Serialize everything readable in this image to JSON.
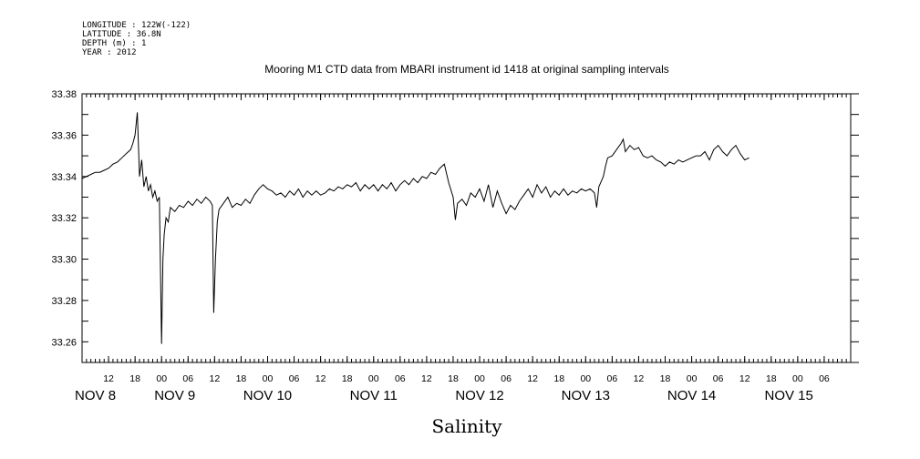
{
  "header": {
    "longitude": "LONGITUDE : 122W(-122)",
    "latitude": "LATITUDE : 36.8N",
    "depth": "DEPTH (m) : 1",
    "year": "YEAR : 2012"
  },
  "chart_data": {
    "type": "line",
    "title": "Mooring M1 CTD data from MBARI instrument id 1418 at original sampling intervals",
    "xlabel": "Salinity",
    "ylabel": "",
    "x_unit": "hours since NOV 8 00:00 (2012)",
    "xlim": [
      6,
      180
    ],
    "ylim": [
      33.25,
      33.38
    ],
    "y_ticks": [
      "33.26",
      "33.28",
      "33.30",
      "33.32",
      "33.34",
      "33.36",
      "33.38"
    ],
    "x_hour_ticks": [
      {
        "t": 12,
        "label": "12"
      },
      {
        "t": 18,
        "label": "18"
      },
      {
        "t": 24,
        "label": "00"
      },
      {
        "t": 30,
        "label": "06"
      },
      {
        "t": 36,
        "label": "12"
      },
      {
        "t": 42,
        "label": "18"
      },
      {
        "t": 48,
        "label": "00"
      },
      {
        "t": 54,
        "label": "06"
      },
      {
        "t": 60,
        "label": "12"
      },
      {
        "t": 66,
        "label": "18"
      },
      {
        "t": 72,
        "label": "00"
      },
      {
        "t": 78,
        "label": "06"
      },
      {
        "t": 84,
        "label": "12"
      },
      {
        "t": 90,
        "label": "18"
      },
      {
        "t": 96,
        "label": "00"
      },
      {
        "t": 102,
        "label": "06"
      },
      {
        "t": 108,
        "label": "12"
      },
      {
        "t": 114,
        "label": "18"
      },
      {
        "t": 120,
        "label": "00"
      },
      {
        "t": 126,
        "label": "06"
      },
      {
        "t": 132,
        "label": "12"
      },
      {
        "t": 138,
        "label": "18"
      },
      {
        "t": 144,
        "label": "00"
      },
      {
        "t": 150,
        "label": "06"
      },
      {
        "t": 156,
        "label": "12"
      },
      {
        "t": 162,
        "label": "18"
      },
      {
        "t": 168,
        "label": "00"
      },
      {
        "t": 174,
        "label": "06"
      }
    ],
    "x_day_labels": [
      {
        "t": 9,
        "label": "NOV  8"
      },
      {
        "t": 27,
        "label": "NOV  9"
      },
      {
        "t": 48,
        "label": "NOV 10"
      },
      {
        "t": 72,
        "label": "NOV 11"
      },
      {
        "t": 96,
        "label": "NOV 12"
      },
      {
        "t": 120,
        "label": "NOV 13"
      },
      {
        "t": 144,
        "label": "NOV 14"
      },
      {
        "t": 166,
        "label": "NOV 15"
      }
    ],
    "series": [
      {
        "values": [
          [
            6.0,
            33.339
          ],
          [
            7.0,
            33.34
          ],
          [
            8.0,
            33.341
          ],
          [
            9.0,
            33.342
          ],
          [
            10.0,
            33.342
          ],
          [
            11.0,
            33.343
          ],
          [
            12.0,
            33.344
          ],
          [
            13.0,
            33.346
          ],
          [
            14.0,
            33.347
          ],
          [
            15.0,
            33.349
          ],
          [
            16.0,
            33.351
          ],
          [
            17.0,
            33.353
          ],
          [
            17.5,
            33.356
          ],
          [
            18.0,
            33.36
          ],
          [
            18.5,
            33.371
          ],
          [
            19.0,
            33.34
          ],
          [
            19.5,
            33.348
          ],
          [
            20.0,
            33.335
          ],
          [
            20.5,
            33.34
          ],
          [
            21.0,
            33.333
          ],
          [
            21.5,
            33.336
          ],
          [
            22.0,
            33.33
          ],
          [
            22.5,
            33.333
          ],
          [
            23.0,
            33.328
          ],
          [
            23.5,
            33.33
          ],
          [
            24.0,
            33.259
          ],
          [
            24.3,
            33.3
          ],
          [
            24.6,
            33.312
          ],
          [
            25.0,
            33.32
          ],
          [
            25.5,
            33.318
          ],
          [
            26.0,
            33.325
          ],
          [
            27.0,
            33.323
          ],
          [
            28.0,
            33.326
          ],
          [
            29.0,
            33.325
          ],
          [
            30.0,
            33.328
          ],
          [
            31.0,
            33.326
          ],
          [
            32.0,
            33.329
          ],
          [
            33.0,
            33.327
          ],
          [
            34.0,
            33.33
          ],
          [
            35.0,
            33.328
          ],
          [
            35.5,
            33.326
          ],
          [
            35.8,
            33.274
          ],
          [
            36.2,
            33.3
          ],
          [
            36.6,
            33.318
          ],
          [
            37.0,
            33.324
          ],
          [
            38.0,
            33.327
          ],
          [
            39.0,
            33.33
          ],
          [
            40.0,
            33.325
          ],
          [
            41.0,
            33.327
          ],
          [
            42.0,
            33.326
          ],
          [
            43.0,
            33.329
          ],
          [
            44.0,
            33.327
          ],
          [
            45.0,
            33.331
          ],
          [
            46.0,
            33.334
          ],
          [
            47.0,
            33.336
          ],
          [
            48.0,
            33.334
          ],
          [
            49.0,
            33.333
          ],
          [
            50.0,
            33.331
          ],
          [
            51.0,
            33.332
          ],
          [
            52.0,
            33.33
          ],
          [
            53.0,
            33.333
          ],
          [
            54.0,
            33.331
          ],
          [
            55.0,
            33.334
          ],
          [
            56.0,
            33.33
          ],
          [
            57.0,
            33.333
          ],
          [
            58.0,
            33.331
          ],
          [
            59.0,
            33.333
          ],
          [
            60.0,
            33.331
          ],
          [
            61.0,
            33.332
          ],
          [
            62.0,
            33.334
          ],
          [
            63.0,
            33.333
          ],
          [
            64.0,
            33.335
          ],
          [
            65.0,
            33.334
          ],
          [
            66.0,
            33.336
          ],
          [
            67.0,
            33.335
          ],
          [
            68.0,
            33.337
          ],
          [
            69.0,
            33.333
          ],
          [
            70.0,
            33.336
          ],
          [
            71.0,
            33.334
          ],
          [
            72.0,
            33.336
          ],
          [
            73.0,
            33.333
          ],
          [
            74.0,
            33.336
          ],
          [
            75.0,
            33.334
          ],
          [
            76.0,
            33.337
          ],
          [
            77.0,
            33.333
          ],
          [
            78.0,
            33.336
          ],
          [
            79.0,
            33.338
          ],
          [
            80.0,
            33.336
          ],
          [
            81.0,
            33.339
          ],
          [
            82.0,
            33.337
          ],
          [
            83.0,
            33.34
          ],
          [
            84.0,
            33.339
          ],
          [
            85.0,
            33.342
          ],
          [
            86.0,
            33.341
          ],
          [
            87.0,
            33.344
          ],
          [
            88.0,
            33.346
          ],
          [
            89.0,
            33.337
          ],
          [
            90.0,
            33.33
          ],
          [
            90.5,
            33.319
          ],
          [
            91.0,
            33.327
          ],
          [
            92.0,
            33.329
          ],
          [
            93.0,
            33.326
          ],
          [
            94.0,
            33.332
          ],
          [
            95.0,
            33.33
          ],
          [
            96.0,
            33.334
          ],
          [
            97.0,
            33.328
          ],
          [
            98.0,
            33.336
          ],
          [
            99.0,
            33.325
          ],
          [
            100.0,
            33.333
          ],
          [
            101.0,
            33.327
          ],
          [
            102.0,
            33.322
          ],
          [
            103.0,
            33.326
          ],
          [
            104.0,
            33.324
          ],
          [
            105.0,
            33.328
          ],
          [
            106.0,
            33.331
          ],
          [
            107.0,
            33.334
          ],
          [
            108.0,
            33.33
          ],
          [
            109.0,
            33.336
          ],
          [
            110.0,
            33.332
          ],
          [
            111.0,
            33.335
          ],
          [
            112.0,
            33.33
          ],
          [
            113.0,
            33.333
          ],
          [
            114.0,
            33.331
          ],
          [
            115.0,
            33.334
          ],
          [
            116.0,
            33.331
          ],
          [
            117.0,
            33.333
          ],
          [
            118.0,
            33.332
          ],
          [
            119.0,
            33.334
          ],
          [
            120.0,
            33.333
          ],
          [
            121.0,
            33.334
          ],
          [
            122.0,
            33.332
          ],
          [
            122.5,
            33.325
          ],
          [
            123.0,
            33.335
          ],
          [
            124.0,
            33.34
          ],
          [
            124.5,
            33.345
          ],
          [
            125.0,
            33.349
          ],
          [
            126.0,
            33.35
          ],
          [
            127.0,
            33.353
          ],
          [
            128.0,
            33.356
          ],
          [
            128.5,
            33.358
          ],
          [
            129.0,
            33.352
          ],
          [
            130.0,
            33.355
          ],
          [
            131.0,
            33.353
          ],
          [
            132.0,
            33.354
          ],
          [
            133.0,
            33.35
          ],
          [
            134.0,
            33.349
          ],
          [
            135.0,
            33.35
          ],
          [
            136.0,
            33.348
          ],
          [
            137.0,
            33.347
          ],
          [
            138.0,
            33.345
          ],
          [
            139.0,
            33.347
          ],
          [
            140.0,
            33.346
          ],
          [
            141.0,
            33.348
          ],
          [
            142.0,
            33.347
          ],
          [
            143.0,
            33.348
          ],
          [
            144.0,
            33.349
          ],
          [
            145.0,
            33.35
          ],
          [
            146.0,
            33.35
          ],
          [
            147.0,
            33.352
          ],
          [
            148.0,
            33.348
          ],
          [
            149.0,
            33.353
          ],
          [
            150.0,
            33.355
          ],
          [
            151.0,
            33.352
          ],
          [
            152.0,
            33.35
          ],
          [
            153.0,
            33.353
          ],
          [
            154.0,
            33.355
          ],
          [
            155.0,
            33.351
          ],
          [
            156.0,
            33.348
          ],
          [
            157.0,
            33.349
          ]
        ]
      }
    ]
  }
}
